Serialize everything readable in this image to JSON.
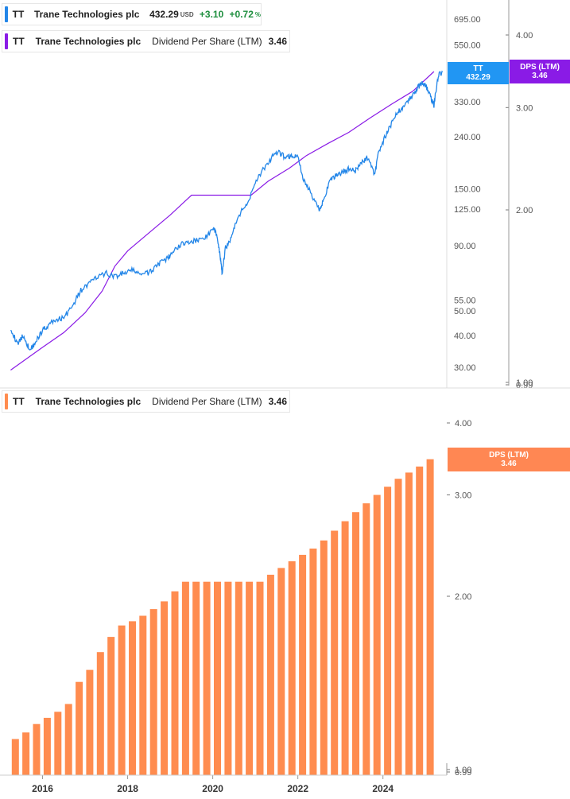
{
  "colors": {
    "price": "#2386e8",
    "dps_line": "#8a1be6",
    "dps_bar": "#ff8c4f",
    "badge_price": "#2196f3",
    "badge_dps_top": "#8a1be6",
    "badge_dps_bottom": "#ff8753"
  },
  "legend_top": {
    "ticker": "TT",
    "name": "Trane Technologies plc",
    "price": "432.29",
    "unit": "USD",
    "change": "+3.10",
    "change_pct": "+0.72",
    "pct_sign": "%"
  },
  "legend_dps_top": {
    "ticker": "TT",
    "name": "Trane Technologies plc",
    "metric": "Dividend Per Share (LTM)",
    "value": "3.46"
  },
  "legend_dps_bottom": {
    "ticker": "TT",
    "name": "Trane Technologies plc",
    "metric": "Dividend Per Share (LTM)",
    "value": "3.46"
  },
  "badges": {
    "price_ticker": "TT",
    "price_value": "432.29",
    "dps_top_label": "DPS (LTM)",
    "dps_top_value": "3.46",
    "dps_bottom_label": "DPS (LTM)",
    "dps_bottom_value": "3.46"
  },
  "chart_data": [
    {
      "type": "line",
      "title": "",
      "scale": "log",
      "price_axis_ticks": [
        "695.00",
        "550.00",
        "330.00",
        "240.00",
        "150.00",
        "125.00",
        "90.00",
        "55.00",
        "50.00",
        "40.00",
        "30.00"
      ],
      "dps_axis_ticks": [
        "4.00",
        "3.00",
        "2.00",
        "1.00",
        "0.99"
      ],
      "series": [
        {
          "name": "TT",
          "x": [
            2015.25,
            2015.4,
            2015.55,
            2015.7,
            2015.85,
            2016.0,
            2016.15,
            2016.3,
            2016.5,
            2016.7,
            2016.9,
            2017.1,
            2017.3,
            2017.5,
            2017.7,
            2017.9,
            2018.1,
            2018.3,
            2018.5,
            2018.7,
            2018.85,
            2019.0,
            2019.2,
            2019.4,
            2019.6,
            2019.8,
            2020.0,
            2020.1,
            2020.18,
            2020.22,
            2020.3,
            2020.45,
            2020.6,
            2020.8,
            2021.0,
            2021.2,
            2021.4,
            2021.55,
            2021.7,
            2021.85,
            2022.0,
            2022.15,
            2022.3,
            2022.5,
            2022.6,
            2022.75,
            2022.9,
            2023.05,
            2023.2,
            2023.35,
            2023.5,
            2023.65,
            2023.8,
            2023.9,
            2024.05,
            2024.2,
            2024.35,
            2024.5,
            2024.65,
            2024.8,
            2024.9,
            2025.0,
            2025.1,
            2025.2,
            2025.3,
            2025.4
          ],
          "y": [
            43,
            37,
            40,
            35,
            38,
            42,
            44,
            46,
            47,
            52,
            60,
            64,
            68,
            70,
            68,
            70,
            72,
            70,
            70,
            76,
            78,
            82,
            90,
            93,
            94,
            96,
            104,
            100,
            80,
            70,
            88,
            98,
            118,
            130,
            160,
            180,
            200,
            208,
            200,
            202,
            200,
            160,
            145,
            125,
            135,
            160,
            170,
            175,
            180,
            176,
            190,
            200,
            170,
            210,
            240,
            270,
            300,
            320,
            340,
            370,
            390,
            385,
            350,
            320,
            420,
            432.29
          ]
        },
        {
          "name": "Dividend Per Share (LTM)",
          "x": [
            2015.25,
            2016.0,
            2016.5,
            2017.0,
            2017.4,
            2017.7,
            2018.0,
            2018.4,
            2019.0,
            2019.5,
            2020.0,
            2020.5,
            2020.9,
            2021.3,
            2021.8,
            2022.2,
            2022.7,
            2023.2,
            2023.7,
            2024.2,
            2024.7,
            2025.2
          ],
          "y": [
            1.06,
            1.16,
            1.23,
            1.33,
            1.45,
            1.6,
            1.7,
            1.8,
            1.96,
            2.12,
            2.12,
            2.12,
            2.12,
            2.24,
            2.36,
            2.48,
            2.6,
            2.72,
            2.88,
            3.04,
            3.2,
            3.46
          ]
        }
      ]
    },
    {
      "type": "bar",
      "title": "",
      "scale": "log",
      "axis_ticks": [
        "4.00",
        "3.00",
        "2.00",
        "1.00",
        "0.99"
      ],
      "x_ticks": [
        "2016",
        "2018",
        "2020",
        "2022",
        "2024"
      ],
      "x": [
        2015.36,
        2015.61,
        2015.86,
        2016.11,
        2016.36,
        2016.61,
        2016.86,
        2017.11,
        2017.36,
        2017.61,
        2017.86,
        2018.11,
        2018.36,
        2018.61,
        2018.86,
        2019.11,
        2019.36,
        2019.61,
        2019.86,
        2020.11,
        2020.36,
        2020.61,
        2020.86,
        2021.11,
        2021.36,
        2021.61,
        2021.86,
        2022.11,
        2022.36,
        2022.61,
        2022.86,
        2023.11,
        2023.36,
        2023.61,
        2023.86,
        2024.11,
        2024.36,
        2024.61,
        2024.86,
        2025.11
      ],
      "values": [
        1.13,
        1.16,
        1.2,
        1.23,
        1.26,
        1.3,
        1.42,
        1.49,
        1.6,
        1.7,
        1.78,
        1.81,
        1.85,
        1.9,
        1.96,
        2.04,
        2.12,
        2.12,
        2.12,
        2.12,
        2.12,
        2.12,
        2.12,
        2.12,
        2.18,
        2.24,
        2.3,
        2.36,
        2.42,
        2.5,
        2.6,
        2.7,
        2.8,
        2.9,
        3.0,
        3.1,
        3.2,
        3.28,
        3.36,
        3.46
      ]
    }
  ]
}
